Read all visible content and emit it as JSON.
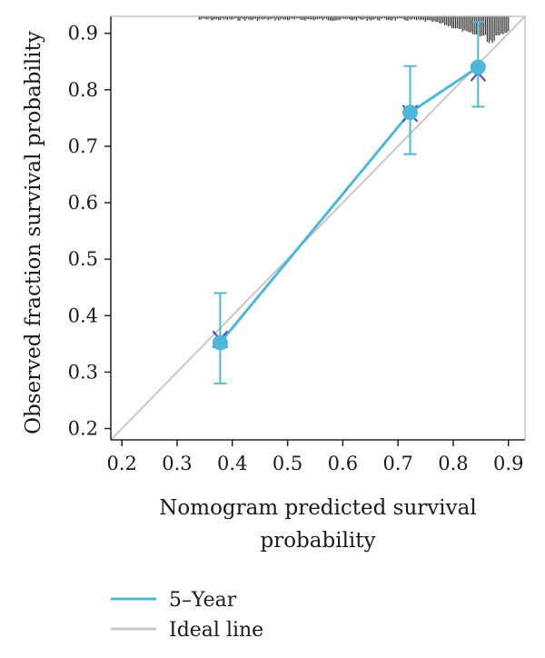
{
  "chart_data": {
    "type": "line",
    "xlabel_lines": [
      "Nomogram predicted survival",
      "probability"
    ],
    "ylabel": "Observed fraction survival probability",
    "xlim": [
      0.18,
      0.93
    ],
    "ylim": [
      0.18,
      0.93
    ],
    "xticks": [
      "0.2",
      "0.3",
      "0.4",
      "0.5",
      "0.6",
      "0.7",
      "0.8",
      "0.9"
    ],
    "yticks": [
      "0.2",
      "0.3",
      "0.4",
      "0.5",
      "0.6",
      "0.7",
      "0.8",
      "0.9"
    ],
    "grid": false,
    "legend_position": "bottom-left",
    "series": [
      {
        "name": "5–Year",
        "color": "#4db8d8",
        "x": [
          0.378,
          0.722,
          0.845
        ],
        "y": [
          0.352,
          0.76,
          0.84
        ],
        "ci_low": [
          0.28,
          0.686,
          0.77
        ],
        "ci_high": [
          0.44,
          0.842,
          0.92
        ],
        "cross_marker_y": [
          0.358,
          0.758,
          0.83
        ]
      },
      {
        "name": "Ideal line",
        "color": "#c8c8c8",
        "x": [
          0.18,
          0.93
        ],
        "y": [
          0.18,
          0.93
        ]
      }
    ],
    "rug_color": "#333333"
  }
}
